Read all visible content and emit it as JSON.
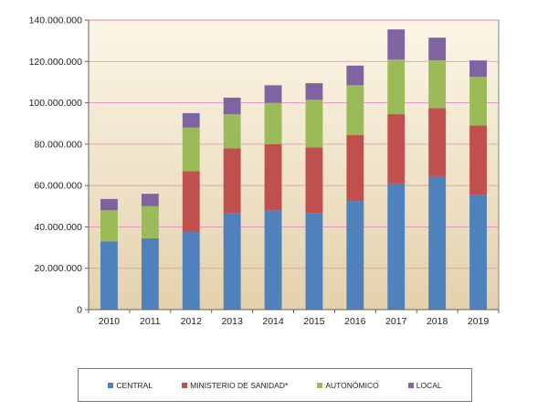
{
  "chart_data": {
    "type": "bar",
    "stacked": true,
    "categories": [
      "2010",
      "2011",
      "2012",
      "2013",
      "2014",
      "2015",
      "2016",
      "2017",
      "2018",
      "2019"
    ],
    "series": [
      {
        "name": "CENTRAL",
        "color": "#4F81BD",
        "values": [
          33000000,
          34500000,
          37500000,
          46500000,
          48000000,
          46500000,
          52500000,
          61000000,
          64500000,
          55500000
        ]
      },
      {
        "name": "MINISTERIO DE SANIDAD*",
        "color": "#C0504D",
        "values": [
          0,
          0,
          29500000,
          31500000,
          32000000,
          32000000,
          32000000,
          33500000,
          33000000,
          33500000
        ]
      },
      {
        "name": "AUTONÓMICO",
        "color": "#9BBB59",
        "values": [
          15000000,
          15500000,
          21000000,
          16500000,
          20000000,
          23000000,
          24000000,
          26500000,
          23000000,
          23500000
        ]
      },
      {
        "name": "LOCAL",
        "color": "#8064A2",
        "values": [
          5500000,
          6000000,
          7000000,
          8000000,
          8500000,
          8000000,
          9500000,
          14500000,
          11000000,
          8000000
        ]
      }
    ],
    "ylim": [
      0,
      140000000
    ],
    "yticks": [
      0,
      20000000,
      40000000,
      60000000,
      80000000,
      100000000,
      120000000,
      140000000
    ],
    "ytick_labels": [
      "0",
      "20.000.000",
      "40.000.000",
      "60.000.000",
      "80.000.000",
      "100.000.000",
      "120.000.000",
      "140.000.000"
    ],
    "grid": true,
    "legend_position": "bottom"
  }
}
